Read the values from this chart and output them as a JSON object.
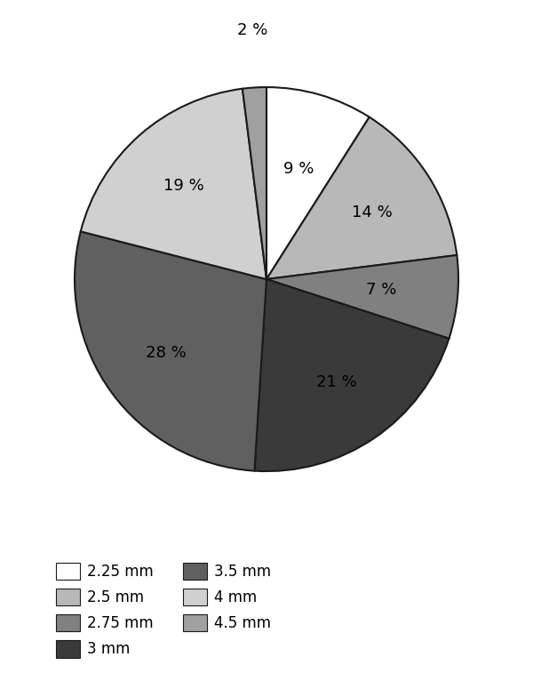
{
  "labels": [
    "2.25 mm",
    "2.5 mm",
    "2.75 mm",
    "3 mm",
    "3.5 mm",
    "4 mm",
    "4.5 mm"
  ],
  "values": [
    9,
    14,
    7,
    21,
    28,
    19,
    2
  ],
  "colors": [
    "#ffffff",
    "#b8b8b8",
    "#808080",
    "#3a3a3a",
    "#606060",
    "#d0d0d0",
    "#a0a0a0"
  ],
  "pct_labels": [
    "9 %",
    "14 %",
    "7 %",
    "21 %",
    "28 %",
    "19 %",
    "2 %"
  ],
  "startangle": 90,
  "edgecolor": "#1a1a1a",
  "linewidth": 1.5,
  "legend_labels": [
    "2.25 mm",
    "2.5 mm",
    "2.75 mm",
    "3 mm",
    "3.5 mm",
    "4 mm",
    "4.5 mm"
  ],
  "legend_colors": [
    "#ffffff",
    "#b8b8b8",
    "#808080",
    "#3a3a3a",
    "#606060",
    "#d0d0d0",
    "#a0a0a0"
  ],
  "pct_fontsize": 13,
  "legend_fontsize": 12
}
